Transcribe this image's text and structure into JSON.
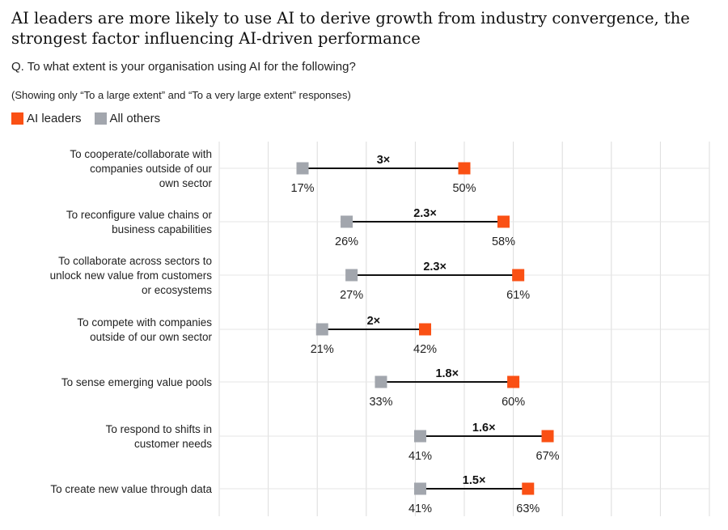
{
  "header": {
    "title": "AI leaders are more likely to use AI to derive growth from industry convergence, the strongest factor influencing AI-driven performance",
    "question": "Q. To what extent is your organisation using AI for the following?",
    "note": "(Showing only “To a large extent” and “To a very large extent” responses)"
  },
  "legend": [
    {
      "label": "AI leaders",
      "color": "#fa5014"
    },
    {
      "label": "All others",
      "color": "#a2a6ad"
    }
  ],
  "chart_data": {
    "type": "dumbbell",
    "xlim": [
      0,
      100
    ],
    "grid": true,
    "legend_position": "top-left",
    "categories": [
      "To cooperate/collaborate with companies outside of our own sector",
      "To reconfigure value chains or business capabilities",
      "To collaborate across sectors to unlock new value from customers or ecosystems",
      "To compete with companies outside of our own sector",
      "To sense emerging value pools",
      "To respond to shifts in customer needs",
      "To create new value through data"
    ],
    "category_lines": [
      [
        "To cooperate/collaborate with",
        "companies outside of our",
        "own sector"
      ],
      [
        "To reconfigure value chains or",
        "business capabilities"
      ],
      [
        "To collaborate across sectors to",
        "unlock new value from customers",
        "or ecosystems"
      ],
      [
        "To compete with companies",
        "outside of our own sector"
      ],
      [
        "To sense emerging value pools"
      ],
      [
        "To respond to shifts in",
        "customer needs"
      ],
      [
        "To create new value through data"
      ]
    ],
    "series": [
      {
        "name": "AI leaders",
        "color": "#fa5014",
        "values": [
          50,
          58,
          61,
          42,
          60,
          67,
          63
        ],
        "labels": [
          "50%",
          "58%",
          "61%",
          "42%",
          "60%",
          "67%",
          "63%"
        ]
      },
      {
        "name": "All others",
        "color": "#a2a6ad",
        "values": [
          17,
          26,
          27,
          21,
          33,
          41,
          41
        ],
        "labels": [
          "17%",
          "26%",
          "27%",
          "21%",
          "33%",
          "41%",
          "41%"
        ]
      }
    ],
    "ratios": [
      "3×",
      "2.3×",
      "2.3×",
      "2×",
      "1.8×",
      "1.6×",
      "1.5×"
    ]
  }
}
